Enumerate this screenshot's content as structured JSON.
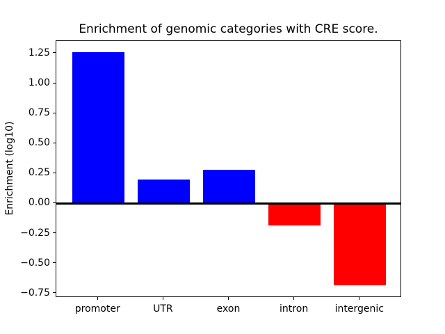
{
  "chart_data": {
    "type": "bar",
    "title": "Enrichment of genomic categories with CRE score.",
    "xlabel": "",
    "ylabel": "Enrichment (log10)",
    "categories": [
      "promoter",
      "UTR",
      "exon",
      "intron",
      "intergenic"
    ],
    "values": [
      1.26,
      0.2,
      0.28,
      -0.18,
      -0.68
    ],
    "bar_colors": [
      "#0000ff",
      "#0000ff",
      "#0000ff",
      "#ff0000",
      "#ff0000"
    ],
    "positive_color": "#0000ff",
    "negative_color": "#ff0000",
    "bar_width_fraction": 0.8,
    "ylim": [
      -0.786,
      1.354
    ],
    "xlim": [
      -0.64,
      4.64
    ],
    "yticks": {
      "values": [
        1.25,
        1.0,
        0.75,
        0.5,
        0.25,
        0.0,
        -0.25,
        -0.5,
        -0.75
      ],
      "labels": [
        "1.25",
        "1.00",
        "0.75",
        "0.50",
        "0.25",
        "0.00",
        "−0.25",
        "−0.50",
        "−0.75"
      ]
    },
    "zero_line": true,
    "zero_line_color": "#000000",
    "grid": false,
    "legend": null,
    "background_color": "#ffffff",
    "axis_color": "#000000"
  }
}
